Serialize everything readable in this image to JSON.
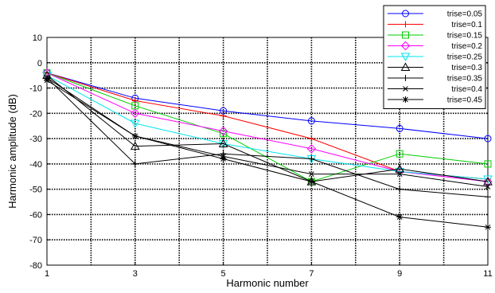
{
  "chart_data": {
    "type": "line",
    "title": "",
    "xlabel": "Harmonic number",
    "ylabel": "Harmonic amplitude (dB)",
    "xlim": [
      1,
      11
    ],
    "ylim": [
      -80,
      10
    ],
    "xticks": [
      1,
      3,
      5,
      7,
      9,
      11
    ],
    "yticks": [
      10,
      0,
      -10,
      -20,
      -30,
      -40,
      -50,
      -60,
      -70,
      -80
    ],
    "grid": true,
    "legend_position": "top-right",
    "x": [
      1,
      3,
      5,
      7,
      9,
      11
    ],
    "series": [
      {
        "name": "trise=0.05",
        "color": "#0000ff",
        "marker": "circle",
        "values": [
          -4,
          -14,
          -19,
          -23,
          -26,
          -30
        ]
      },
      {
        "name": "trise=0.1",
        "color": "#ff0000",
        "marker": "plus",
        "values": [
          -4,
          -15,
          -21,
          -30,
          -43,
          -46
        ]
      },
      {
        "name": "trise=0.15",
        "color": "#00cc00",
        "marker": "square",
        "values": [
          -4,
          -17,
          -28,
          -47,
          -36,
          -40
        ]
      },
      {
        "name": "trise=0.2",
        "color": "#ff00ff",
        "marker": "diamond",
        "values": [
          -4,
          -20,
          -27,
          -34,
          -43,
          -47
        ]
      },
      {
        "name": "trise=0.25",
        "color": "#00e5ee",
        "marker": "triangle-down",
        "values": [
          -5,
          -24,
          -32,
          -38,
          -43,
          -46
        ]
      },
      {
        "name": "trise=0.3",
        "color": "#000000",
        "marker": "triangle-up",
        "values": [
          -5,
          -33,
          -32,
          -47,
          -42,
          -47
        ]
      },
      {
        "name": "trise=0.35",
        "color": "#000000",
        "marker": "plus",
        "values": [
          -6,
          -40,
          -36,
          -38,
          -50,
          -53
        ]
      },
      {
        "name": "trise=0.4",
        "color": "#000000",
        "marker": "x",
        "values": [
          -6,
          -29,
          -37,
          -44,
          -44,
          -49
        ]
      },
      {
        "name": "trise=0.45",
        "color": "#000000",
        "marker": "star",
        "values": [
          -7,
          -29,
          -38,
          -47,
          -61,
          -65
        ]
      }
    ]
  }
}
